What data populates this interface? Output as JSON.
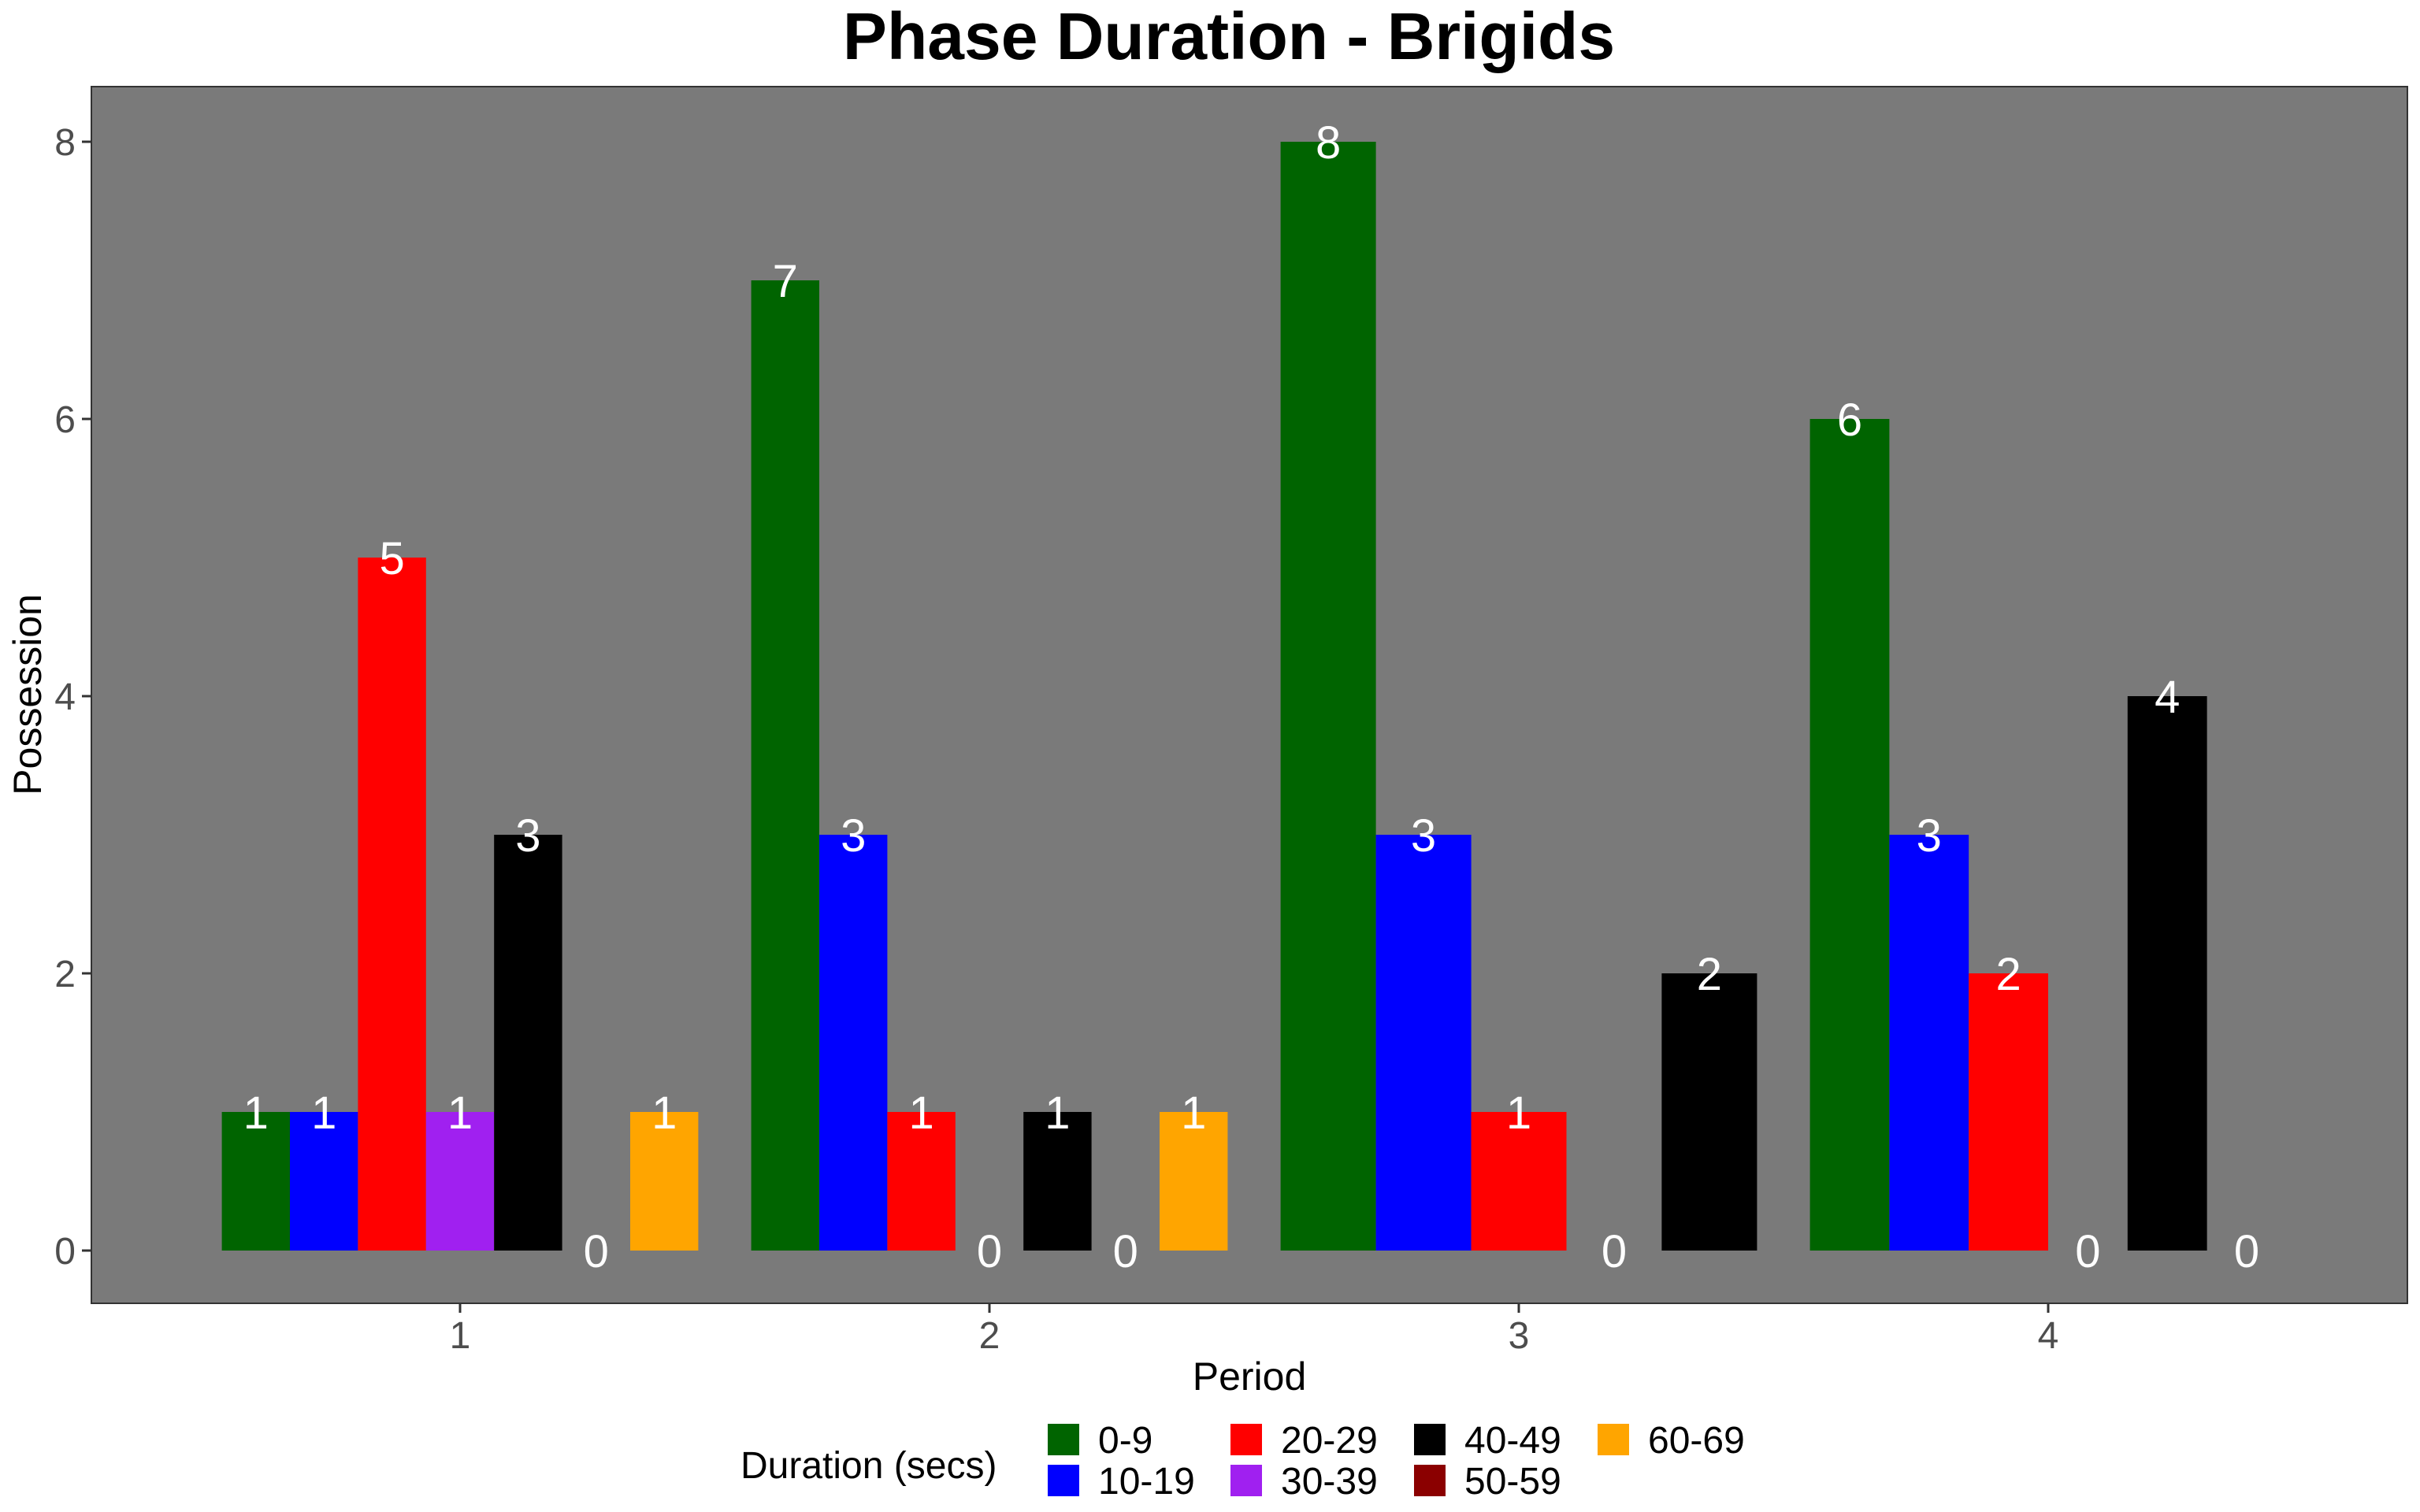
{
  "chart_data": {
    "type": "bar",
    "title": "Phase Duration - Brigids",
    "xlabel": "Period",
    "ylabel": "Possession",
    "categories": [
      "1",
      "2",
      "3",
      "4"
    ],
    "ylim": [
      -0.4,
      8.4
    ],
    "yticks": [
      0,
      2,
      4,
      6,
      8
    ],
    "grid": false,
    "legend": {
      "title": "Duration (secs)",
      "position": "bottom"
    },
    "series": [
      {
        "name": "0-9",
        "color": "#006400"
      },
      {
        "name": "10-19",
        "color": "#0000FF"
      },
      {
        "name": "20-29",
        "color": "#FF0000"
      },
      {
        "name": "30-39",
        "color": "#A020F0"
      },
      {
        "name": "40-49",
        "color": "#000000"
      },
      {
        "name": "50-59",
        "color": "#8B0000"
      },
      {
        "name": "60-69",
        "color": "#FFA500"
      }
    ],
    "groups": [
      {
        "period": "1",
        "bars": [
          {
            "series": "0-9",
            "value": 1
          },
          {
            "series": "10-19",
            "value": 1
          },
          {
            "series": "20-29",
            "value": 5
          },
          {
            "series": "30-39",
            "value": 1
          },
          {
            "series": "40-49",
            "value": 3
          },
          {
            "series": "50-59",
            "value": 0
          },
          {
            "series": "60-69",
            "value": 1
          }
        ]
      },
      {
        "period": "2",
        "bars": [
          {
            "series": "0-9",
            "value": 7
          },
          {
            "series": "10-19",
            "value": 3
          },
          {
            "series": "20-29",
            "value": 1
          },
          {
            "series": "30-39",
            "value": 0
          },
          {
            "series": "40-49",
            "value": 1
          },
          {
            "series": "50-59",
            "value": 0
          },
          {
            "series": "60-69",
            "value": 1
          }
        ]
      },
      {
        "period": "3",
        "bars": [
          {
            "series": "0-9",
            "value": 8
          },
          {
            "series": "10-19",
            "value": 3
          },
          {
            "series": "20-29",
            "value": 1
          },
          {
            "series": "30-39",
            "value": 0
          },
          {
            "series": "40-49",
            "value": 2
          }
        ]
      },
      {
        "period": "4",
        "bars": [
          {
            "series": "0-9",
            "value": 6
          },
          {
            "series": "10-19",
            "value": 3
          },
          {
            "series": "20-29",
            "value": 2
          },
          {
            "series": "30-39",
            "value": 0
          },
          {
            "series": "40-49",
            "value": 4
          },
          {
            "series": "50-59",
            "value": 0
          }
        ]
      }
    ],
    "colors": {
      "panel_background": "#7a7a7a",
      "bar_label": "#ffffff"
    }
  }
}
